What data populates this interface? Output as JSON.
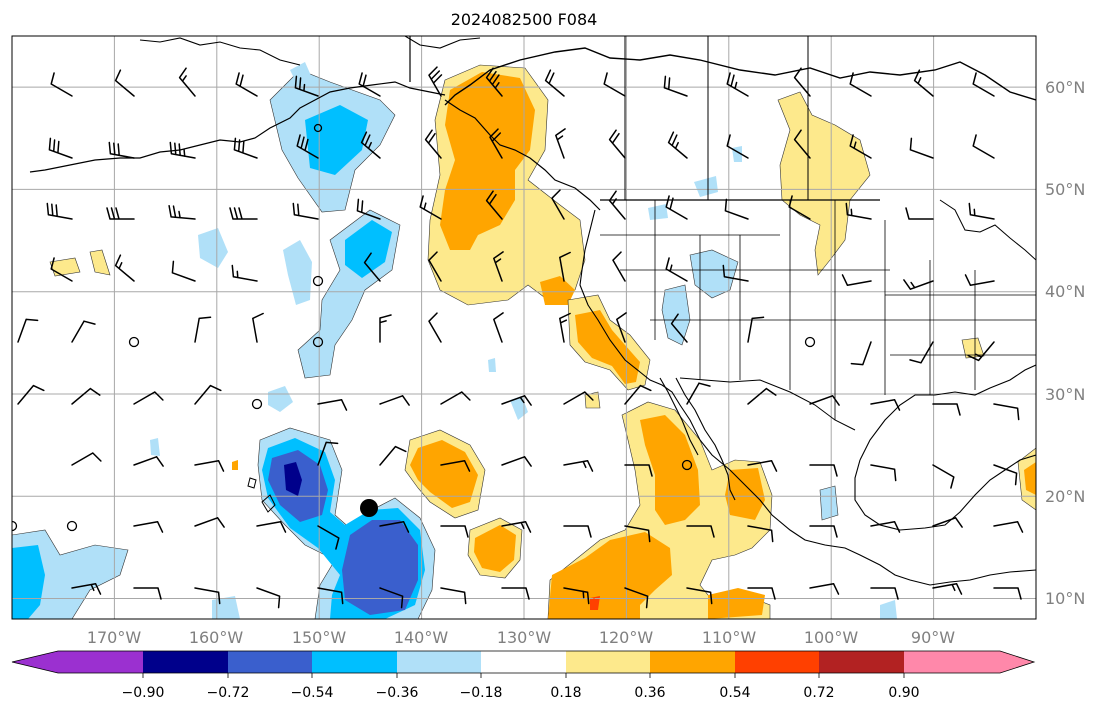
{
  "title": "2024082500 F084",
  "map": {
    "lat_labels": [
      "60°N",
      "50°N",
      "40°N",
      "30°N",
      "20°N",
      "10°N"
    ],
    "lat_values": [
      60,
      50,
      40,
      30,
      20,
      10
    ],
    "lon_labels": [
      "170°W",
      "160°W",
      "150°W",
      "140°W",
      "130°W",
      "120°W",
      "110°W",
      "100°W",
      "90°W"
    ],
    "lon_values": [
      -170,
      -160,
      -150,
      -140,
      -130,
      -120,
      -110,
      -100,
      -90
    ],
    "extent": {
      "lon_min": -180,
      "lon_max": -80,
      "lat_min": 8,
      "lat_max": 65
    }
  },
  "colorbar": {
    "levels": [
      "−0.90",
      "−0.72",
      "−0.54",
      "−0.36",
      "−0.18",
      "0.18",
      "0.36",
      "0.54",
      "0.72",
      "0.90"
    ],
    "colors": [
      "#9b30d0",
      "#00008b",
      "#3a5fcd",
      "#00bfff",
      "#b0e0f8",
      "#ffffff",
      "#fde98c",
      "#ffa500",
      "#ff4000",
      "#b22222",
      "#ff88aa"
    ]
  },
  "colors": {
    "neg_light": "#b0e0f8",
    "neg_mid": "#00bfff",
    "neg_dark": "#3a5fcd",
    "neg_darkest": "#00008b",
    "pos_light": "#fde98c",
    "pos_mid": "#ffa500",
    "pos_dark": "#ff4000"
  }
}
